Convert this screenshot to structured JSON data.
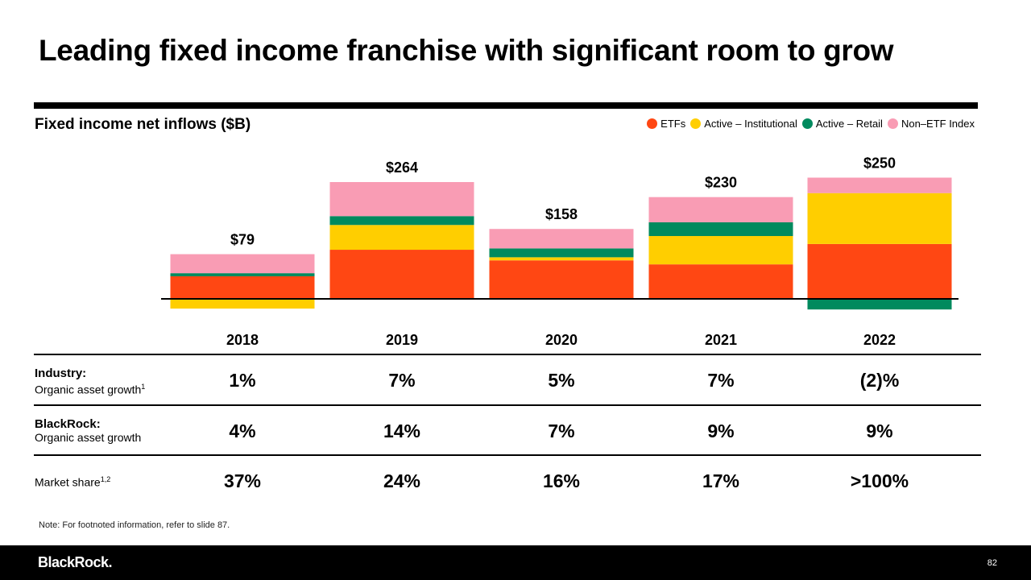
{
  "title": "Leading fixed income franchise with significant room to grow",
  "chart_data": {
    "type": "bar",
    "stacked": true,
    "title": "Fixed income net inflows ($B)",
    "categories": [
      "2018",
      "2019",
      "2020",
      "2021",
      "2022"
    ],
    "totals": [
      "$79",
      "$264",
      "$158",
      "$230",
      "$250"
    ],
    "total_values": [
      79,
      264,
      158,
      230,
      250
    ],
    "series": [
      {
        "name": "ETFs",
        "color": "#FF4713",
        "values": [
          51,
          111,
          87,
          78,
          124
        ]
      },
      {
        "name": "Active – Institutional",
        "color": "#FFCE00",
        "values": [
          -22,
          56,
          7,
          64,
          115
        ]
      },
      {
        "name": "Active – Retail",
        "color": "#008A5E",
        "values": [
          7,
          20,
          20,
          31,
          -24
        ]
      },
      {
        "name": "Non–ETF Index",
        "color": "#F99CB4",
        "values": [
          43,
          77,
          44,
          57,
          35
        ]
      }
    ],
    "legend_position": "top-right",
    "xlabel": "",
    "ylabel": ""
  },
  "table": {
    "rows": [
      {
        "label_bold": "Industry:",
        "label": "Organic asset growth",
        "sup": "1",
        "values": [
          "1%",
          "7%",
          "5%",
          "7%",
          "(2)%"
        ]
      },
      {
        "label_bold": "BlackRock:",
        "label": "Organic asset growth",
        "sup": "",
        "values": [
          "4%",
          "14%",
          "7%",
          "9%",
          "9%"
        ]
      },
      {
        "label_bold": "",
        "label": "Market share",
        "sup": "1,2",
        "values": [
          "37%",
          "24%",
          "16%",
          "17%",
          ">100%"
        ]
      }
    ]
  },
  "note": "Note: For footnoted information, refer to slide 87.",
  "footer": {
    "logo": "BlackRock.",
    "page": "82"
  }
}
